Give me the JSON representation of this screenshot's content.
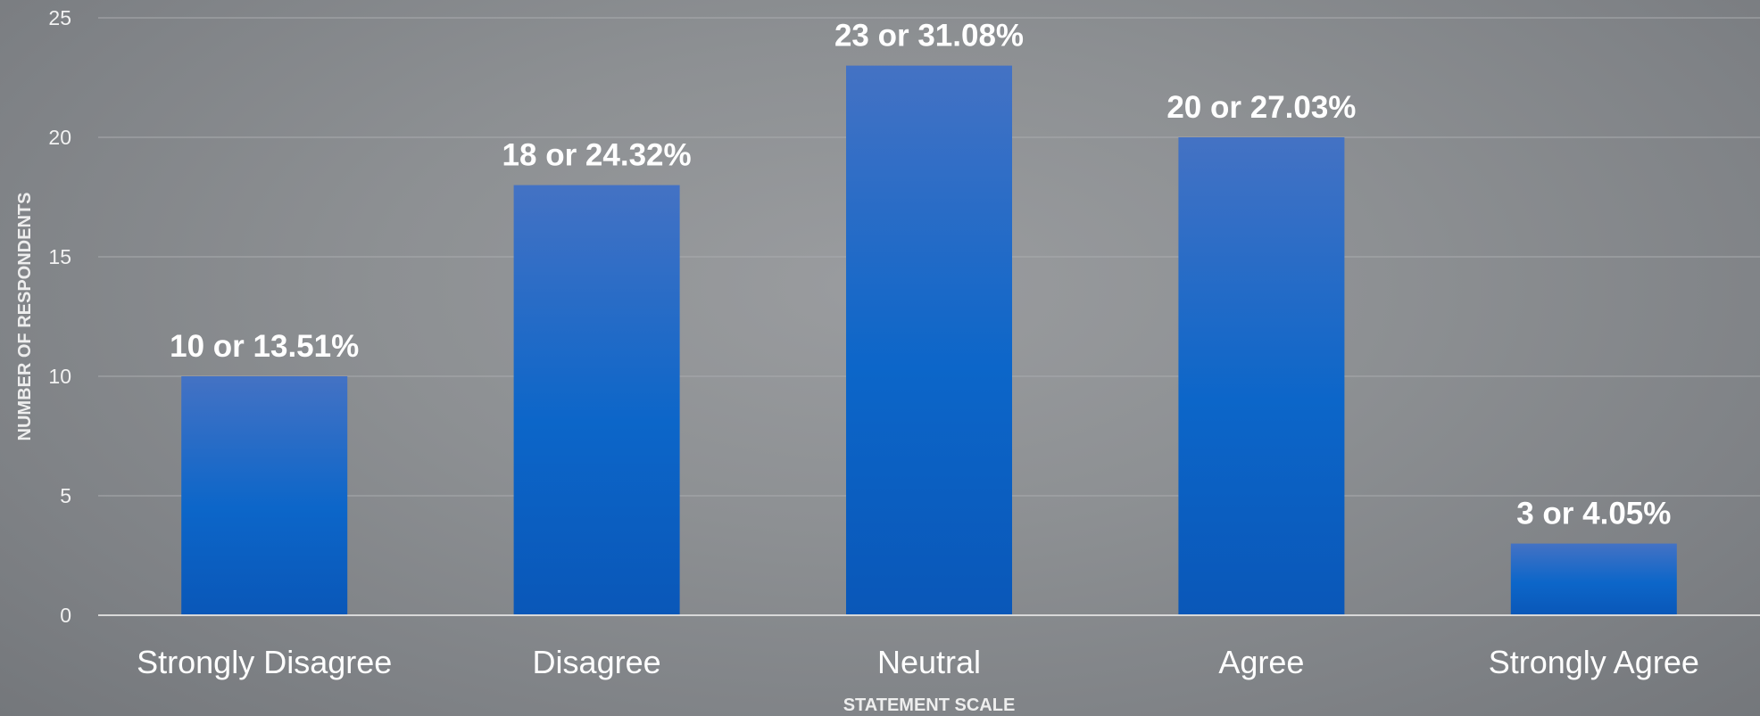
{
  "chart_data": {
    "type": "bar",
    "categories": [
      "Strongly Disagree",
      "Disagree",
      "Neutral",
      "Agree",
      "Strongly Agree"
    ],
    "values": [
      10,
      18,
      23,
      20,
      3
    ],
    "data_labels": [
      "10 or 13.51%",
      "18 or 24.32%",
      "23 or 31.08%",
      "20 or 27.03%",
      "3 or 4.05%"
    ],
    "title": "",
    "xlabel": "STATEMENT SCALE",
    "ylabel": "NUMBER OF RESPONDENTS",
    "ylim": [
      0,
      25
    ],
    "yticks": [
      0,
      5,
      10,
      15,
      20,
      25
    ],
    "grid": true,
    "legend": "none",
    "colors": {
      "bar_top": "#4472c4",
      "bar_bottom": "#0a57b8",
      "gridline": "#a9abae",
      "axis_line": "#d9d9d9"
    }
  }
}
